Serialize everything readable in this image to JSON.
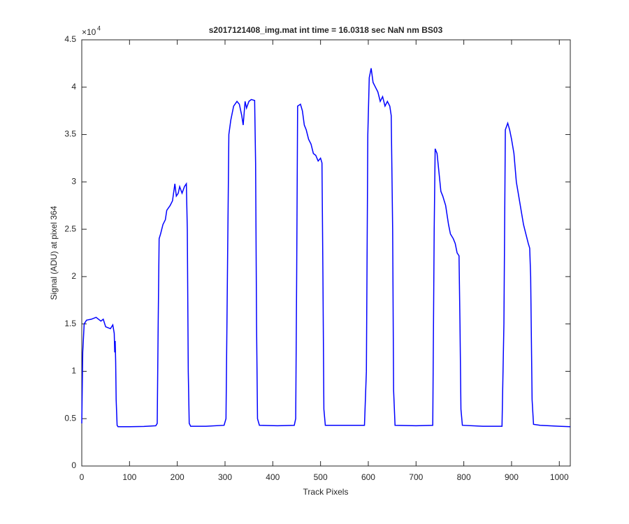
{
  "chart_data": {
    "type": "line",
    "title": "s2017121408_img.mat int time = 16.0318 sec  NaN nm BS03",
    "x_label": "Track Pixels",
    "y_label": "Signal (ADU) at pixel 364",
    "y_multiplier": "×10",
    "y_multiplier_exponent": "4",
    "xlim": [
      0,
      1023
    ],
    "ylim": [
      0,
      4.5
    ],
    "xticks": [
      0,
      100,
      200,
      300,
      400,
      500,
      600,
      700,
      800,
      900,
      1000
    ],
    "yticks": [
      0,
      0.5,
      1,
      1.5,
      2,
      2.5,
      3,
      3.5,
      4,
      4.5
    ],
    "grid": false,
    "x": [
      0,
      2,
      5,
      10,
      20,
      30,
      40,
      45,
      50,
      55,
      60,
      65,
      68,
      69,
      70,
      71,
      72,
      74,
      76,
      100,
      130,
      155,
      158,
      160,
      162,
      165,
      170,
      175,
      178,
      185,
      190,
      195,
      198,
      202,
      205,
      210,
      215,
      219,
      221,
      223,
      225,
      228,
      260,
      298,
      302,
      305,
      308,
      312,
      318,
      325,
      330,
      335,
      338,
      342,
      345,
      350,
      355,
      362,
      364,
      366,
      368,
      372,
      410,
      445,
      448,
      450,
      452,
      458,
      462,
      466,
      470,
      475,
      480,
      485,
      490,
      495,
      500,
      503,
      505,
      507,
      510,
      540,
      592,
      596,
      599,
      602,
      606,
      610,
      615,
      620,
      625,
      630,
      635,
      640,
      645,
      648,
      651,
      653,
      656,
      700,
      735,
      738,
      740,
      744,
      748,
      752,
      756,
      762,
      768,
      772,
      778,
      782,
      786,
      790,
      792,
      794,
      797,
      840,
      880,
      884,
      887,
      892,
      896,
      900,
      905,
      910,
      915,
      920,
      925,
      930,
      935,
      938,
      940,
      943,
      946,
      960,
      1000,
      1023
    ],
    "series": [
      {
        "color": "#0000ff",
        "values": [
          0.45,
          1.2,
          1.5,
          1.54,
          1.55,
          1.57,
          1.53,
          1.55,
          1.47,
          1.46,
          1.45,
          1.49,
          1.4,
          1.2,
          1.32,
          1.1,
          0.7,
          0.43,
          0.415,
          0.415,
          0.418,
          0.425,
          0.45,
          1.5,
          2.4,
          2.45,
          2.55,
          2.6,
          2.7,
          2.75,
          2.8,
          2.98,
          2.85,
          2.88,
          2.95,
          2.88,
          2.95,
          2.98,
          2.5,
          1.0,
          0.45,
          0.42,
          0.42,
          0.43,
          0.5,
          2.0,
          3.5,
          3.65,
          3.8,
          3.85,
          3.82,
          3.7,
          3.6,
          3.85,
          3.78,
          3.85,
          3.87,
          3.86,
          3.2,
          1.5,
          0.5,
          0.43,
          0.425,
          0.43,
          0.5,
          2.0,
          3.8,
          3.82,
          3.75,
          3.6,
          3.55,
          3.45,
          3.4,
          3.3,
          3.28,
          3.22,
          3.25,
          3.2,
          2.0,
          0.6,
          0.43,
          0.43,
          0.43,
          1.0,
          3.5,
          4.1,
          4.2,
          4.05,
          4.0,
          3.95,
          3.85,
          3.9,
          3.8,
          3.85,
          3.8,
          3.7,
          2.5,
          0.8,
          0.43,
          0.425,
          0.43,
          2.5,
          3.35,
          3.3,
          3.1,
          2.9,
          2.85,
          2.75,
          2.55,
          2.45,
          2.4,
          2.35,
          2.25,
          2.22,
          1.5,
          0.6,
          0.43,
          0.42,
          0.42,
          1.5,
          3.55,
          3.62,
          3.55,
          3.45,
          3.3,
          3.0,
          2.85,
          2.7,
          2.55,
          2.45,
          2.35,
          2.3,
          2.0,
          0.7,
          0.44,
          0.43,
          0.42,
          0.415
        ]
      }
    ]
  }
}
